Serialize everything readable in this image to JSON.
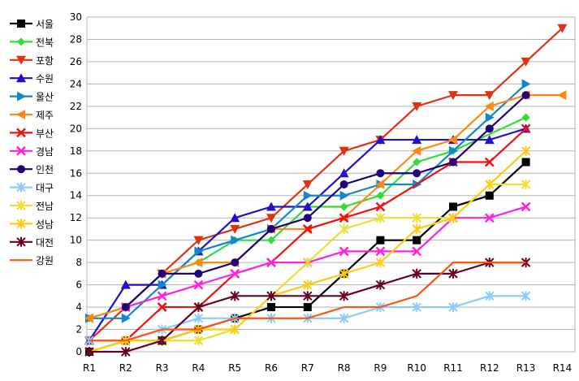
{
  "chart_data": {
    "type": "line",
    "title": "",
    "xlabel": "",
    "ylabel": "",
    "ylim": [
      0,
      30
    ],
    "ytick_step": 2,
    "grid": true,
    "legend_position": "left",
    "categories": [
      "R1",
      "R2",
      "R3",
      "R4",
      "R5",
      "R6",
      "R7",
      "R8",
      "R9",
      "R10",
      "R11",
      "R12",
      "R13",
      "R14"
    ],
    "series": [
      {
        "name": "서울",
        "color": "#000000",
        "marker": "square",
        "values": [
          0,
          1,
          1,
          2,
          3,
          4,
          4,
          7,
          10,
          10,
          13,
          14,
          17,
          null
        ]
      },
      {
        "name": "전북",
        "color": "#33dd33",
        "marker": "diamond",
        "values": [
          3,
          4,
          7,
          8,
          10,
          10,
          13,
          13,
          14,
          17,
          18,
          null,
          21,
          null
        ]
      },
      {
        "name": "포항",
        "color": "#dd3311",
        "marker": "triangle-down",
        "values": [
          1,
          4,
          7,
          10,
          11,
          12,
          15,
          18,
          19,
          22,
          23,
          23,
          26,
          29
        ]
      },
      {
        "name": "수원",
        "color": "#2211cc",
        "marker": "triangle-up",
        "values": [
          1,
          6,
          6,
          9,
          12,
          13,
          13,
          16,
          19,
          19,
          19,
          19,
          20,
          null
        ]
      },
      {
        "name": "울산",
        "color": "#1188cc",
        "marker": "triangle-right",
        "values": [
          3,
          3,
          6,
          9,
          10,
          11,
          14,
          14,
          15,
          15,
          18,
          21,
          24,
          null
        ]
      },
      {
        "name": "제주",
        "color": "#ff8811",
        "marker": "triangle-left",
        "values": [
          3,
          4,
          7,
          8,
          8,
          11,
          11,
          12,
          15,
          18,
          19,
          22,
          23,
          23
        ]
      },
      {
        "name": "부산",
        "color": "#ee1111",
        "marker": "x",
        "values": [
          1,
          1,
          4,
          4,
          7,
          8,
          11,
          12,
          13,
          null,
          17,
          17,
          20,
          null
        ]
      },
      {
        "name": "경남",
        "color": "#ff22dd",
        "marker": "x",
        "values": [
          null,
          4,
          5,
          6,
          7,
          8,
          8,
          9,
          9,
          9,
          12,
          12,
          13,
          null
        ]
      },
      {
        "name": "인천",
        "color": "#220077",
        "marker": "circle",
        "values": [
          null,
          4,
          7,
          7,
          8,
          11,
          12,
          15,
          16,
          16,
          17,
          20,
          23,
          null
        ]
      },
      {
        "name": "대구",
        "color": "#88ccff",
        "marker": "star",
        "values": [
          1,
          1,
          2,
          3,
          3,
          3,
          3,
          3,
          4,
          4,
          4,
          5,
          5,
          null
        ]
      },
      {
        "name": "전남",
        "color": "#eedd33",
        "marker": "star",
        "values": [
          0,
          1,
          1,
          1,
          2,
          5,
          8,
          11,
          12,
          12,
          12,
          15,
          15,
          null
        ]
      },
      {
        "name": "성남",
        "color": "#ffcc11",
        "marker": "star",
        "values": [
          0,
          1,
          1,
          2,
          2,
          5,
          6,
          7,
          8,
          11,
          12,
          15,
          18,
          null
        ]
      },
      {
        "name": "대전",
        "color": "#660022",
        "marker": "star",
        "values": [
          0,
          0,
          1,
          4,
          5,
          5,
          5,
          5,
          6,
          7,
          7,
          8,
          8,
          null
        ]
      },
      {
        "name": "강원",
        "color": "#ff5511",
        "marker": "none",
        "values": [
          1,
          1,
          2,
          2,
          3,
          3,
          3,
          4,
          4,
          5,
          8,
          8,
          8,
          null
        ]
      }
    ]
  }
}
